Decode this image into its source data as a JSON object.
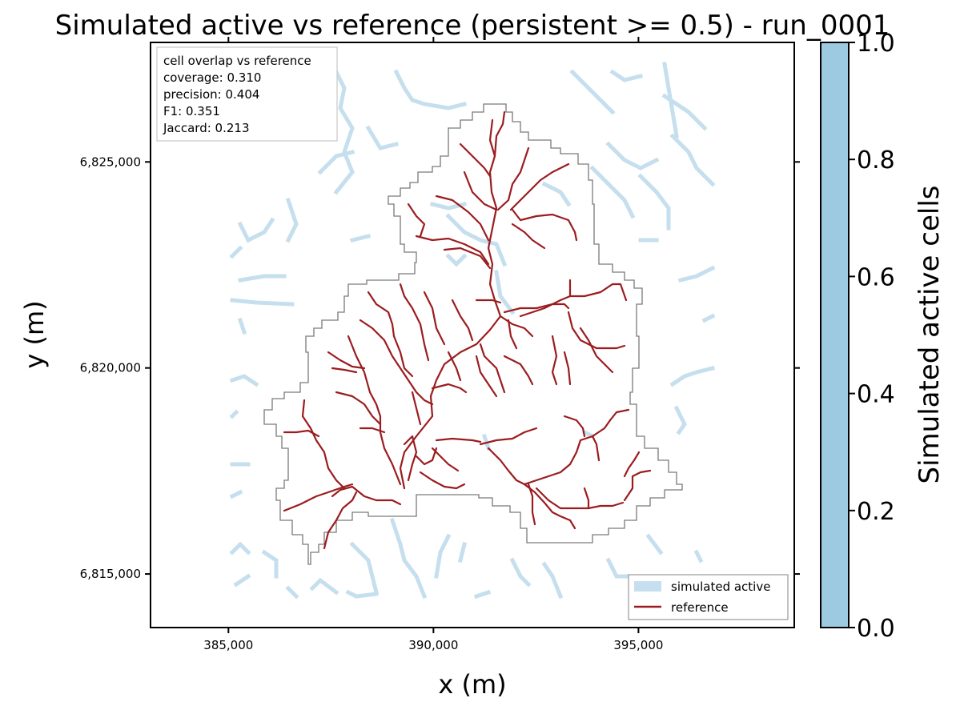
{
  "title": "Simulated active vs reference (persistent >= 0.5) - run_0001",
  "axes": {
    "xlabel": "x (m)",
    "ylabel": "y (m)",
    "xlim": [
      383100,
      398800
    ],
    "ylim": [
      6813700,
      6827900
    ],
    "xticks": [
      {
        "value": 385000,
        "label": "385,000"
      },
      {
        "value": 390000,
        "label": "390,000"
      },
      {
        "value": 395000,
        "label": "395,000"
      }
    ],
    "yticks": [
      {
        "value": 6815000,
        "label": "6,815,000"
      },
      {
        "value": 6820000,
        "label": "6,820,000"
      },
      {
        "value": 6825000,
        "label": "6,825,000"
      }
    ]
  },
  "stats_box": {
    "heading": "cell overlap vs reference",
    "lines": [
      "coverage: 0.310",
      "precision: 0.404",
      "F1: 0.351",
      "Jaccard: 0.213"
    ]
  },
  "legend": {
    "placement": "lower-right",
    "entries": [
      {
        "label": "simulated active",
        "kind": "patch",
        "color": "#c6dfee"
      },
      {
        "label": "reference",
        "kind": "line",
        "color": "#9b1c1f"
      }
    ]
  },
  "colorbar": {
    "label": "Simulated active cells",
    "range": [
      0.0,
      1.0
    ],
    "ticks": [
      "0.0",
      "0.2",
      "0.4",
      "0.6",
      "0.8",
      "1.0"
    ],
    "color": "#9ecae1"
  },
  "colors": {
    "simulated": "#c6dfee",
    "reference": "#9b1c1f",
    "boundary": "#7a7a7a"
  }
}
